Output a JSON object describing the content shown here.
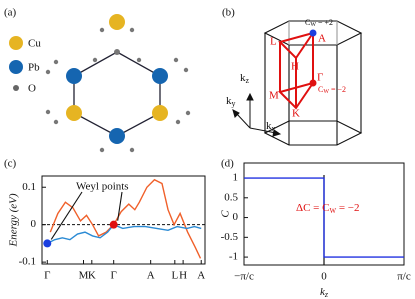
{
  "figure_a": {
    "panel": "(a)",
    "legend": [
      "Cu",
      "Pb",
      "O"
    ]
  },
  "figure_b": {
    "panel": "(b)",
    "cw_plus": {
      "main": "C",
      "sub": "W",
      "rest": " = +2"
    },
    "cw_minus": {
      "main": "C",
      "sub": "W",
      "rest": " = −2"
    },
    "points": [
      "A",
      "L",
      "H",
      "Γ",
      "M",
      "K"
    ],
    "axes": [
      {
        "main": "k",
        "sub": "z"
      },
      {
        "main": "k",
        "sub": "y"
      },
      {
        "main": "k",
        "sub": "x"
      }
    ]
  },
  "chart_data": [
    {
      "type": "line",
      "panel": "(c)",
      "ylabel": "Energy (eV)",
      "annotation": "Weyl points",
      "xlim": [
        -7,
        209
      ],
      "ylim": [
        -0.105,
        0.13
      ],
      "yticks": [
        0.1,
        0,
        -0.1
      ],
      "xticks": [
        {
          "value": 0,
          "label": "Γ"
        },
        {
          "value": 48,
          "label": "M"
        },
        {
          "value": 59,
          "label": "K"
        },
        {
          "value": 88,
          "label": "Γ"
        },
        {
          "value": 137,
          "label": "A"
        },
        {
          "value": 169,
          "label": "L"
        },
        {
          "value": 180,
          "label": "H"
        },
        {
          "value": 204,
          "label": "A"
        }
      ],
      "hline": 0,
      "series": [
        {
          "color": "#f0602a",
          "x": [
            4,
            14,
            24,
            34,
            44,
            52,
            60,
            68,
            78,
            88,
            98,
            108,
            116,
            122,
            132,
            142,
            152,
            160,
            168,
            176,
            186,
            196,
            203
          ],
          "values": [
            -0.02,
            0.03,
            0.06,
            0.045,
            0.01,
            0.025,
            0.0,
            -0.03,
            -0.02,
            0.0,
            0.035,
            0.055,
            0.04,
            0.06,
            0.1,
            0.12,
            0.11,
            0.04,
            0.0,
            0.03,
            -0.02,
            -0.06,
            -0.09
          ]
        },
        {
          "color": "#2a8ad4",
          "x": [
            0,
            10,
            20,
            30,
            40,
            50,
            60,
            70,
            80,
            88,
            100,
            115,
            130,
            145,
            160,
            172,
            185,
            195,
            204
          ],
          "values": [
            -0.05,
            -0.04,
            -0.035,
            -0.04,
            -0.025,
            -0.02,
            -0.03,
            -0.035,
            -0.02,
            0,
            -0.01,
            -0.005,
            -0.005,
            -0.01,
            -0.015,
            -0.005,
            -0.01,
            -0.005,
            -0.01
          ]
        }
      ],
      "points": [
        {
          "x": 0,
          "y": -0.05,
          "color": "#1a3fe0"
        },
        {
          "x": 88,
          "y": 0,
          "color": "#e01010"
        }
      ]
    },
    {
      "type": "line",
      "panel": "(d)",
      "ylabel": "C",
      "xlabel": {
        "main": "k",
        "sub": "z"
      },
      "annotation": {
        "main": "ΔC = C",
        "sub": "W",
        "rest": " = −2"
      },
      "xlim": [
        -1,
        1
      ],
      "ylim": [
        -1.2,
        1.38
      ],
      "xticks": [
        {
          "value": -1,
          "label": "−π/c"
        },
        0,
        {
          "value": 1,
          "label": "π/c"
        }
      ],
      "yticks": [
        1,
        0.5,
        0,
        -0.5,
        -1
      ],
      "vline": 0,
      "series": [
        {
          "color": "#2030e0",
          "x": [
            -1,
            0,
            0,
            1
          ],
          "values": [
            1,
            1,
            -1,
            -1
          ]
        }
      ]
    }
  ]
}
